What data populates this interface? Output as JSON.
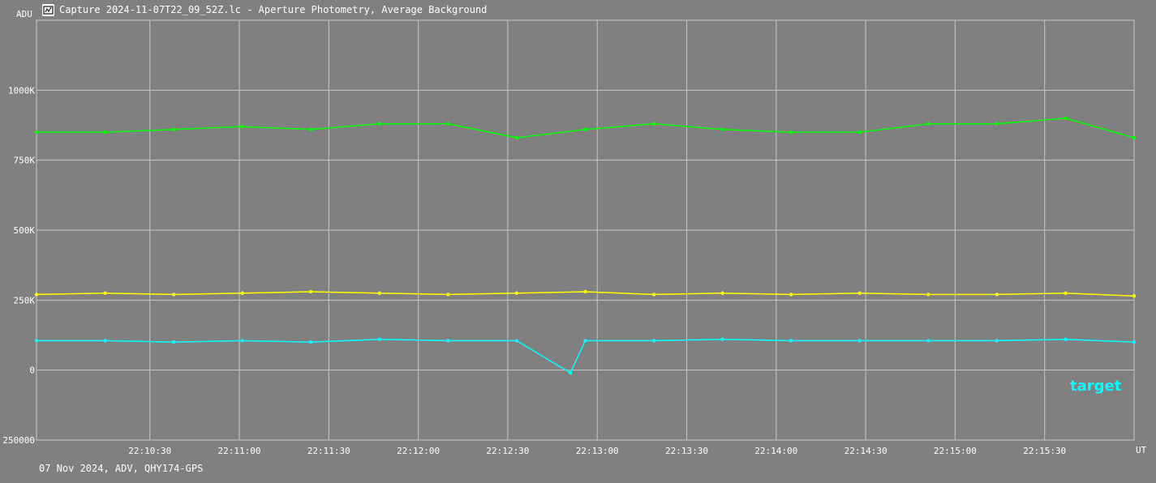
{
  "window": {
    "title": "Capture 2024-11-07T22_09_52Z.lc - Aperture Photometry, Average Background",
    "icon": "app-icon"
  },
  "footer": {
    "text": "07 Nov 2024, ADV, QHY174-GPS"
  },
  "chart_data": {
    "type": "line",
    "title": "",
    "ylabel": "ADU",
    "xlabel": "UT",
    "grid": true,
    "xlim": [
      "22:09:52",
      "22:16:00"
    ],
    "ylim": [
      -250000,
      1250000
    ],
    "x_ticks": [
      "22:10:30",
      "22:11:00",
      "22:11:30",
      "22:12:00",
      "22:12:30",
      "22:13:00",
      "22:13:30",
      "22:14:00",
      "22:14:30",
      "22:15:00",
      "22:15:30"
    ],
    "y_ticks": [
      {
        "value": 1000000,
        "label": "1000K"
      },
      {
        "value": 750000,
        "label": "750K"
      },
      {
        "value": 500000,
        "label": "500K"
      },
      {
        "value": 250000,
        "label": "250K"
      },
      {
        "value": 0,
        "label": "0"
      },
      {
        "value": -250000,
        "label": "250000"
      }
    ],
    "series": [
      {
        "color": "#00ff00",
        "x": [
          "22:09:52",
          "22:10:15",
          "22:10:38",
          "22:11:01",
          "22:11:24",
          "22:11:47",
          "22:12:10",
          "22:12:33",
          "22:12:56",
          "22:13:19",
          "22:13:42",
          "22:14:05",
          "22:14:28",
          "22:14:51",
          "22:15:14",
          "22:15:37",
          "22:16:00"
        ],
        "y": [
          850000,
          850000,
          860000,
          870000,
          860000,
          880000,
          880000,
          830000,
          860000,
          880000,
          860000,
          850000,
          850000,
          880000,
          880000,
          900000,
          830000
        ]
      },
      {
        "color": "#ffff00",
        "x": [
          "22:09:52",
          "22:10:15",
          "22:10:38",
          "22:11:01",
          "22:11:24",
          "22:11:47",
          "22:12:10",
          "22:12:33",
          "22:12:56",
          "22:13:19",
          "22:13:42",
          "22:14:05",
          "22:14:28",
          "22:14:51",
          "22:15:14",
          "22:15:37",
          "22:16:00"
        ],
        "y": [
          270000,
          275000,
          270000,
          275000,
          280000,
          275000,
          270000,
          275000,
          280000,
          270000,
          275000,
          270000,
          275000,
          270000,
          270000,
          275000,
          265000
        ]
      },
      {
        "name": "target",
        "color": "#00ffff",
        "x": [
          "22:09:52",
          "22:10:15",
          "22:10:38",
          "22:11:01",
          "22:11:24",
          "22:11:47",
          "22:12:10",
          "22:12:33",
          "22:12:51",
          "22:12:56",
          "22:13:19",
          "22:13:42",
          "22:14:05",
          "22:14:28",
          "22:14:51",
          "22:15:14",
          "22:15:37",
          "22:16:00"
        ],
        "y": [
          105000,
          105000,
          100000,
          105000,
          100000,
          110000,
          105000,
          105000,
          -10000,
          105000,
          105000,
          110000,
          105000,
          105000,
          105000,
          105000,
          110000,
          100000
        ]
      }
    ]
  }
}
